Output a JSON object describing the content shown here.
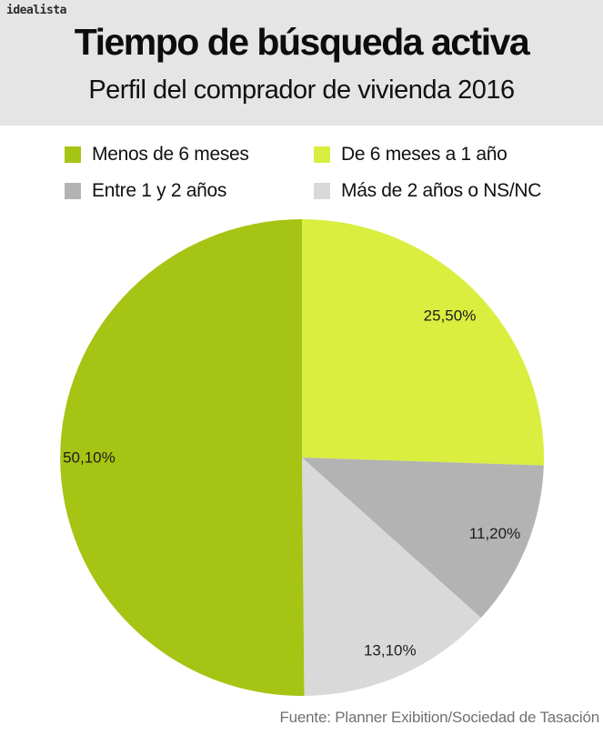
{
  "brand": {
    "logo": "idealista"
  },
  "header": {
    "title": "Tiempo de búsqueda activa",
    "subtitle": "Perfil del comprador de vivienda 2016"
  },
  "legend": [
    {
      "label": "Menos de 6 meses",
      "color": "#a5c413"
    },
    {
      "label": "De 6 meses a 1 año",
      "color": "#d9ee3f"
    },
    {
      "label": "Entre 1 y 2 años",
      "color": "#b3b3b3"
    },
    {
      "label": "Más de 2 años o NS/NC",
      "color": "#d9d9d9"
    }
  ],
  "chart_data": {
    "type": "pie",
    "title": "Tiempo de búsqueda activa",
    "subtitle": "Perfil del comprador de vivienda 2016",
    "unit": "%",
    "start_angle_deg": 0,
    "direction": "clockwise",
    "legend_position": "top",
    "slices": [
      {
        "label": "De 6 meses a 1 año",
        "value": 25.5,
        "display": "25,50%",
        "color": "#d9ee3f",
        "label_r": 0.85
      },
      {
        "label": "Entre 1 y 2 años",
        "value": 11.2,
        "display": "11,20%",
        "color": "#b3b3b3",
        "label_r": 0.86
      },
      {
        "label": "Más de 2 años o NS/NC",
        "value": 13.1,
        "display": "13,10%",
        "color": "#d9d9d9",
        "label_r": 0.89
      },
      {
        "label": "Menos de 6 meses",
        "value": 50.1,
        "display": "50,10%",
        "color": "#a5c413",
        "label_r": 0.88
      }
    ]
  },
  "footer": {
    "source": "Fuente: Planner Exibition/Sociedad de Tasación"
  }
}
